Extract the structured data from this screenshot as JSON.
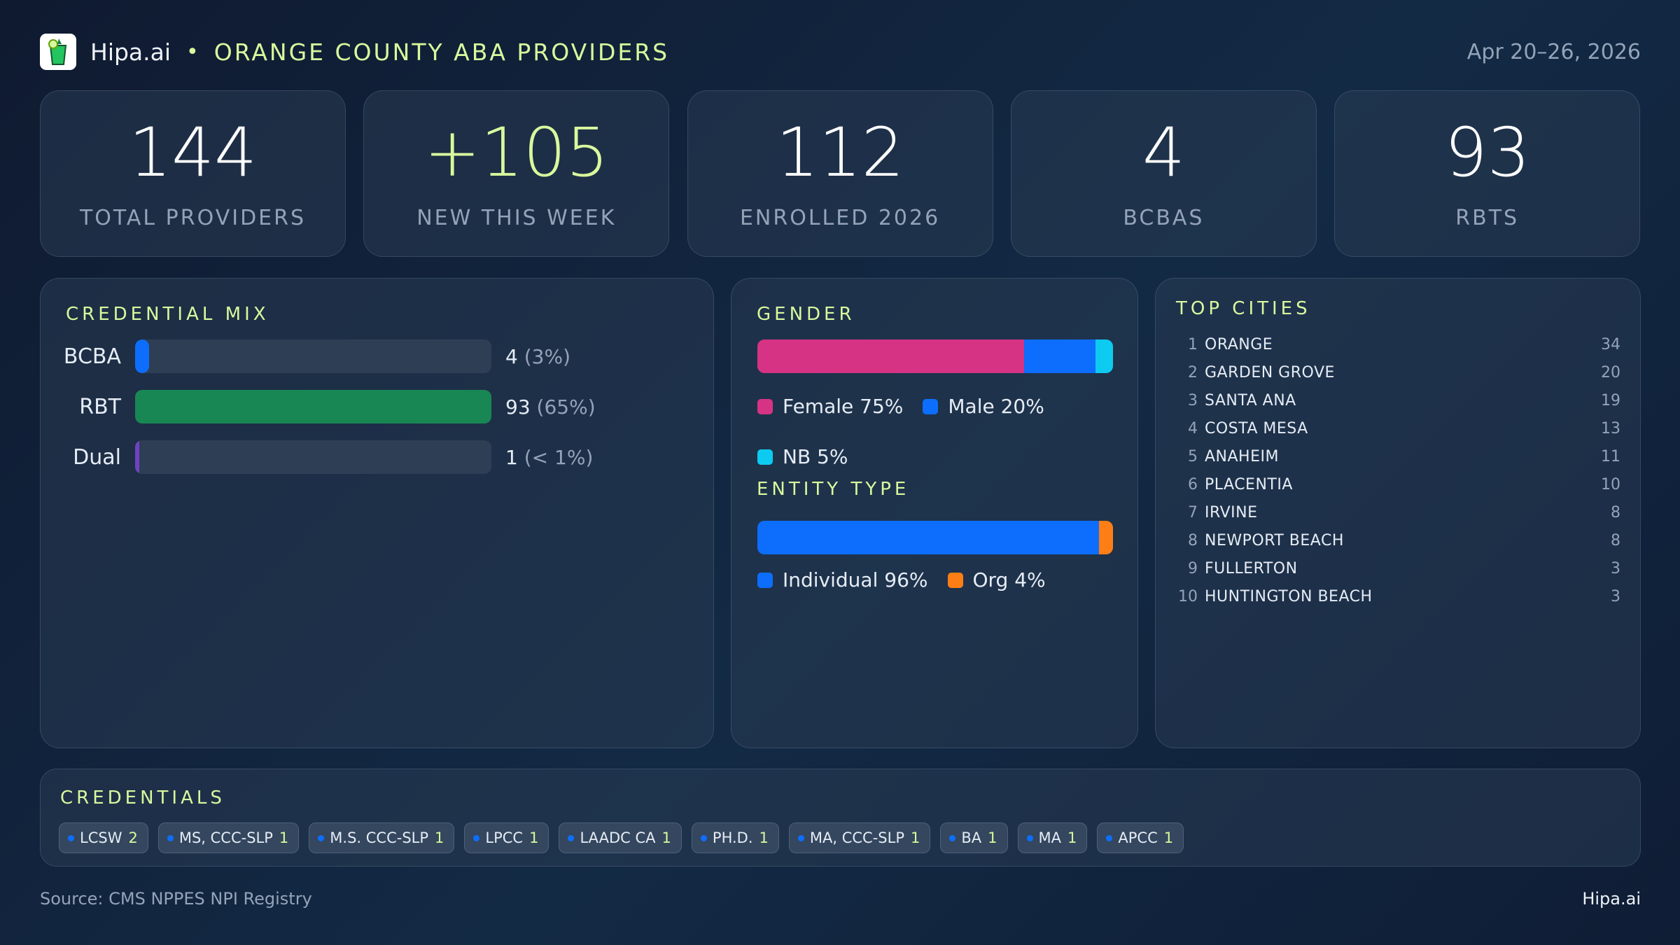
{
  "header": {
    "brand": "Hipa.ai",
    "separator": "•",
    "title": "ORANGE COUNTY ABA PROVIDERS",
    "date_range": "Apr 20–26, 2026",
    "logo_icon": "mojito-glass-icon"
  },
  "kpis": [
    {
      "value": "144",
      "label": "TOTAL PROVIDERS",
      "color": "#ffffff"
    },
    {
      "value": "+105",
      "label": "NEW THIS WEEK",
      "color": "#d9f99d"
    },
    {
      "value": "112",
      "label": "ENROLLED 2026",
      "color": "#ffffff"
    },
    {
      "value": "4",
      "label": "BCBAS",
      "color": "#ffffff"
    },
    {
      "value": "93",
      "label": "RBTS",
      "color": "#ffffff"
    }
  ],
  "credential_mix": {
    "title": "CREDENTIAL MIX",
    "rows": [
      {
        "label": "BCBA",
        "count": "4",
        "pct": "(3%)",
        "fill_fraction": 0.04,
        "color": "#0d6efd"
      },
      {
        "label": "RBT",
        "count": "93",
        "pct": "(65%)",
        "fill_fraction": 1.0,
        "color": "#198754"
      },
      {
        "label": "Dual",
        "count": "1",
        "pct": "(< 1%)",
        "fill_fraction": 0.01,
        "color": "#6f42c1"
      }
    ]
  },
  "gender": {
    "title": "GENDER",
    "segments": [
      {
        "label": "Female 75%",
        "share": 75,
        "color": "#d63384"
      },
      {
        "label": "Male 20%",
        "share": 20,
        "color": "#0d6efd"
      },
      {
        "label": "NB 5%",
        "share": 5,
        "color": "#0dcaf0"
      }
    ]
  },
  "entity_type": {
    "title": "ENTITY TYPE",
    "segments": [
      {
        "label": "Individual 96%",
        "share": 96,
        "color": "#0d6efd"
      },
      {
        "label": "Org 4%",
        "share": 4,
        "color": "#fd7e14"
      }
    ]
  },
  "top_cities": {
    "title": "TOP CITIES",
    "items": [
      {
        "rank": "1",
        "name": "ORANGE",
        "count": "34"
      },
      {
        "rank": "2",
        "name": "GARDEN GROVE",
        "count": "20"
      },
      {
        "rank": "3",
        "name": "SANTA ANA",
        "count": "19"
      },
      {
        "rank": "4",
        "name": "COSTA MESA",
        "count": "13"
      },
      {
        "rank": "5",
        "name": "ANAHEIM",
        "count": "11"
      },
      {
        "rank": "6",
        "name": "PLACENTIA",
        "count": "10"
      },
      {
        "rank": "7",
        "name": "IRVINE",
        "count": "8"
      },
      {
        "rank": "8",
        "name": "NEWPORT BEACH",
        "count": "8"
      },
      {
        "rank": "9",
        "name": "FULLERTON",
        "count": "3"
      },
      {
        "rank": "10",
        "name": "HUNTINGTON BEACH",
        "count": "3"
      }
    ]
  },
  "credentials": {
    "title": "CREDENTIALS",
    "chips": [
      {
        "label": "LCSW",
        "count": "2"
      },
      {
        "label": "MS, CCC-SLP",
        "count": "1"
      },
      {
        "label": "M.S. CCC-SLP",
        "count": "1"
      },
      {
        "label": "LPCC",
        "count": "1"
      },
      {
        "label": "LAADC CA",
        "count": "1"
      },
      {
        "label": "PH.D.",
        "count": "1"
      },
      {
        "label": "MA, CCC-SLP",
        "count": "1"
      },
      {
        "label": "BA",
        "count": "1"
      },
      {
        "label": "MA",
        "count": "1"
      },
      {
        "label": "APCC",
        "count": "1"
      }
    ]
  },
  "footer": {
    "source": "Source: CMS NPPES NPI Registry",
    "brand": "Hipa.ai"
  }
}
